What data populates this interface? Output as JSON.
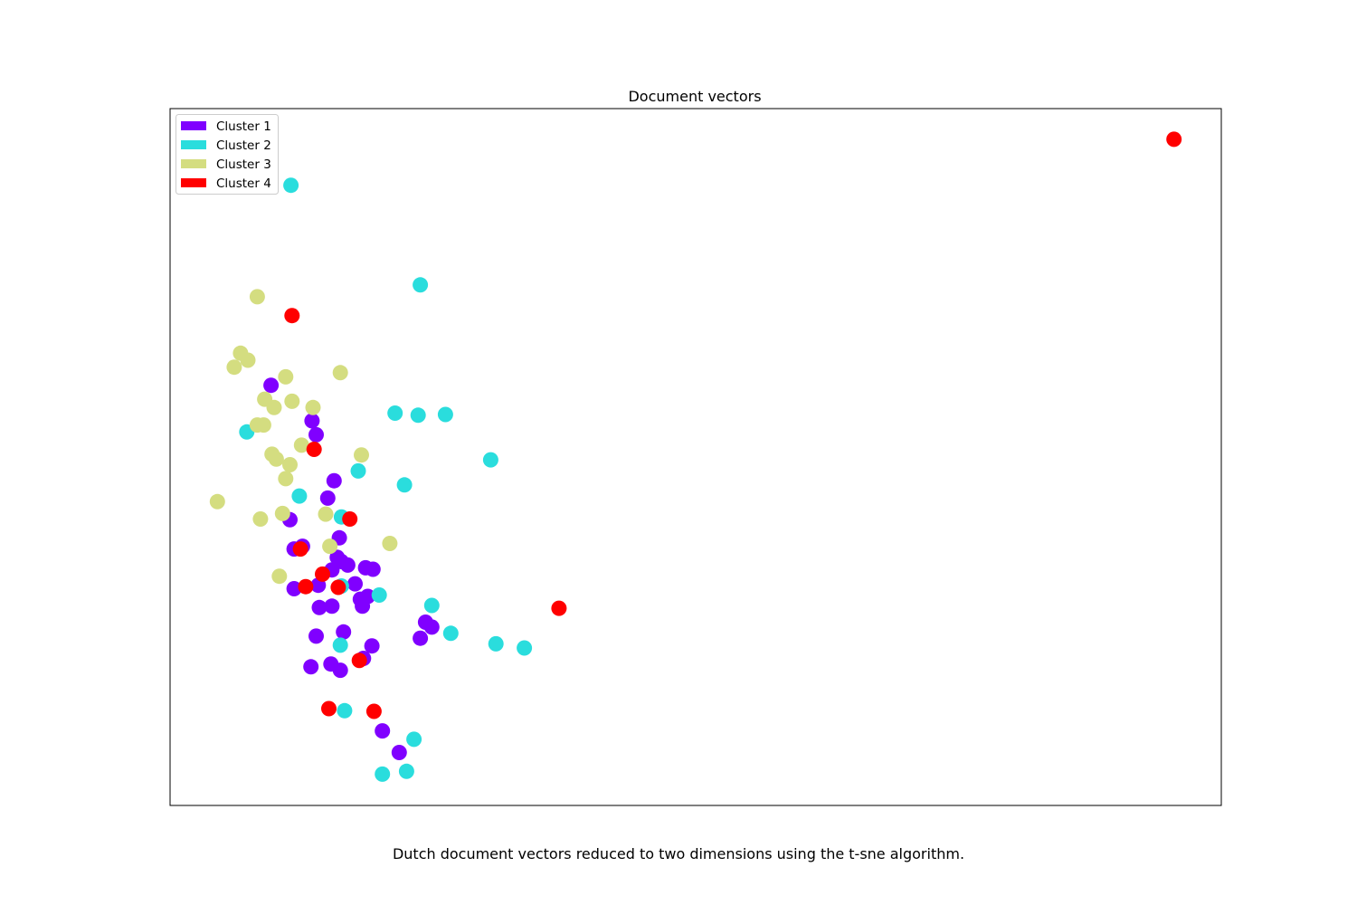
{
  "caption": "Dutch document vectors reduced to two dimensions using the t-sne algorithm.",
  "chart_data": {
    "type": "scatter",
    "title": "Document vectors",
    "xlabel": "",
    "ylabel": "",
    "xlim": [
      0,
      100
    ],
    "ylim": [
      0,
      100
    ],
    "grid": false,
    "ticks": false,
    "legend_position": "top-left",
    "series": [
      {
        "name": "Cluster 1",
        "color": "#8000ff",
        "points": [
          [
            9.6,
            60.3
          ],
          [
            13.5,
            55.2
          ],
          [
            13.9,
            53.2
          ],
          [
            15.6,
            46.6
          ],
          [
            15.0,
            44.1
          ],
          [
            11.4,
            41.0
          ],
          [
            12.6,
            37.2
          ],
          [
            11.8,
            36.8
          ],
          [
            15.9,
            35.6
          ],
          [
            16.1,
            38.4
          ],
          [
            15.4,
            33.8
          ],
          [
            16.3,
            35.0
          ],
          [
            16.9,
            34.5
          ],
          [
            18.6,
            34.1
          ],
          [
            19.3,
            33.9
          ],
          [
            17.6,
            31.8
          ],
          [
            11.8,
            31.1
          ],
          [
            14.1,
            31.6
          ],
          [
            14.2,
            28.4
          ],
          [
            15.4,
            28.6
          ],
          [
            18.1,
            29.6
          ],
          [
            18.3,
            28.6
          ],
          [
            18.8,
            30.0
          ],
          [
            13.9,
            24.3
          ],
          [
            16.5,
            24.9
          ],
          [
            19.2,
            22.9
          ],
          [
            24.3,
            26.3
          ],
          [
            24.9,
            25.6
          ],
          [
            23.8,
            24.0
          ],
          [
            13.4,
            19.9
          ],
          [
            15.3,
            20.3
          ],
          [
            16.2,
            19.4
          ],
          [
            18.4,
            21.1
          ],
          [
            20.2,
            10.7
          ],
          [
            21.8,
            7.6
          ]
        ]
      },
      {
        "name": "Cluster 2",
        "color": "#2adddd",
        "points": [
          [
            11.5,
            89.0
          ],
          [
            23.8,
            74.7
          ],
          [
            21.4,
            56.3
          ],
          [
            23.6,
            56.0
          ],
          [
            26.2,
            56.1
          ],
          [
            7.3,
            53.6
          ],
          [
            30.5,
            49.6
          ],
          [
            17.9,
            48.0
          ],
          [
            22.3,
            46.0
          ],
          [
            12.3,
            44.4
          ],
          [
            16.3,
            41.4
          ],
          [
            16.3,
            31.5
          ],
          [
            19.9,
            30.2
          ],
          [
            24.9,
            28.7
          ],
          [
            26.7,
            24.7
          ],
          [
            31.0,
            23.2
          ],
          [
            33.7,
            22.6
          ],
          [
            16.2,
            23.0
          ],
          [
            16.6,
            13.6
          ],
          [
            23.2,
            9.5
          ],
          [
            20.2,
            4.5
          ],
          [
            22.5,
            4.9
          ]
        ]
      },
      {
        "name": "Cluster 3",
        "color": "#d4dd80",
        "points": [
          [
            8.3,
            73.0
          ],
          [
            6.7,
            64.9
          ],
          [
            7.4,
            63.9
          ],
          [
            6.1,
            62.9
          ],
          [
            11.0,
            61.5
          ],
          [
            16.2,
            62.1
          ],
          [
            9.0,
            58.3
          ],
          [
            11.6,
            58.0
          ],
          [
            9.9,
            57.1
          ],
          [
            13.6,
            57.1
          ],
          [
            8.3,
            54.6
          ],
          [
            8.9,
            54.6
          ],
          [
            12.5,
            51.7
          ],
          [
            9.7,
            50.4
          ],
          [
            10.1,
            49.7
          ],
          [
            11.4,
            48.9
          ],
          [
            18.2,
            50.3
          ],
          [
            11.0,
            46.9
          ],
          [
            4.5,
            43.6
          ],
          [
            10.7,
            41.9
          ],
          [
            14.8,
            41.8
          ],
          [
            8.6,
            41.1
          ],
          [
            15.2,
            37.2
          ],
          [
            20.9,
            37.6
          ],
          [
            10.4,
            32.9
          ]
        ]
      },
      {
        "name": "Cluster 4",
        "color": "#ff0000",
        "points": [
          [
            95.5,
            95.6
          ],
          [
            11.6,
            70.3
          ],
          [
            13.7,
            51.1
          ],
          [
            17.1,
            41.1
          ],
          [
            12.4,
            36.8
          ],
          [
            14.5,
            33.2
          ],
          [
            12.9,
            31.4
          ],
          [
            16.0,
            31.3
          ],
          [
            37.0,
            28.3
          ],
          [
            18.0,
            20.8
          ],
          [
            15.1,
            13.9
          ],
          [
            19.4,
            13.5
          ]
        ]
      }
    ]
  }
}
